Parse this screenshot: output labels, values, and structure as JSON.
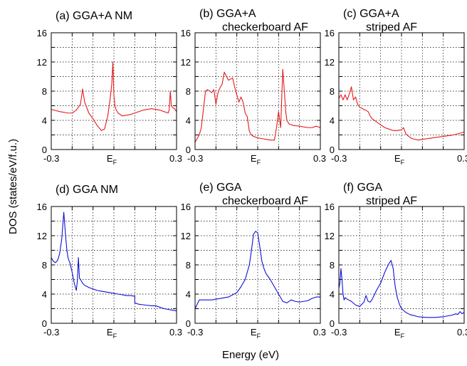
{
  "figure": {
    "ylabel": "DOS (states/eV/f.u.)",
    "xlabel": "Energy (eV)",
    "ef_main": "E",
    "ef_sub": "F"
  },
  "chart_data": [
    {
      "type": "line",
      "label": [
        "(a) GGA+A NM"
      ],
      "color": "#e8191c",
      "xlim": [
        -0.3,
        0.3
      ],
      "ylim": [
        0,
        16
      ],
      "xtick_labels": [
        "-0.3",
        "0.3"
      ],
      "ytick_labels": [
        "0",
        "4",
        "8",
        "12",
        "16"
      ],
      "x": [
        -0.3,
        -0.26,
        -0.22,
        -0.2,
        -0.18,
        -0.16,
        -0.15,
        -0.14,
        -0.12,
        -0.1,
        -0.08,
        -0.06,
        -0.045,
        -0.03,
        -0.02,
        -0.01,
        -0.005,
        0,
        0.005,
        0.01,
        0.02,
        0.04,
        0.06,
        0.08,
        0.1,
        0.14,
        0.18,
        0.22,
        0.24,
        0.26,
        0.265,
        0.27,
        0.275,
        0.28,
        0.29,
        0.3
      ],
      "y": [
        5.5,
        5.2,
        5.0,
        5.0,
        5.4,
        6.2,
        8.3,
        6.5,
        5.0,
        4.2,
        3.3,
        2.6,
        2.8,
        4.5,
        6.5,
        9.0,
        12.0,
        7.5,
        6.0,
        5.5,
        5.0,
        4.6,
        4.7,
        4.8,
        5.0,
        5.4,
        5.6,
        5.4,
        5.2,
        5.0,
        5.5,
        8.0,
        6.0,
        5.8,
        5.6,
        5.2
      ]
    },
    {
      "type": "line",
      "label": [
        "(b) GGA+A",
        "checkerboard AF"
      ],
      "color": "#e8191c",
      "xlim": [
        -0.3,
        0.3
      ],
      "ylim": [
        0,
        16
      ],
      "xtick_labels": [
        "-0.3",
        "0.3"
      ],
      "ytick_labels": [
        "0",
        "4",
        "8",
        "12",
        "16"
      ],
      "x": [
        -0.3,
        -0.28,
        -0.27,
        -0.26,
        -0.25,
        -0.24,
        -0.22,
        -0.21,
        -0.2,
        -0.19,
        -0.18,
        -0.17,
        -0.16,
        -0.14,
        -0.12,
        -0.11,
        -0.1,
        -0.09,
        -0.08,
        -0.07,
        -0.06,
        -0.05,
        -0.04,
        -0.03,
        -0.02,
        -0.01,
        0,
        0.02,
        0.04,
        0.06,
        0.08,
        0.09,
        0.1,
        0.11,
        0.12,
        0.13,
        0.135,
        0.14,
        0.15,
        0.16,
        0.17,
        0.2,
        0.22,
        0.24,
        0.26,
        0.28,
        0.3
      ],
      "y": [
        1.0,
        2.0,
        3.0,
        5.5,
        8.0,
        8.2,
        7.8,
        8.2,
        6.2,
        7.8,
        8.5,
        9.0,
        10.6,
        9.5,
        9.8,
        8.5,
        7.5,
        6.5,
        7.2,
        6.5,
        5.0,
        4.5,
        2.5,
        2.0,
        1.8,
        1.7,
        1.6,
        1.5,
        1.4,
        1.3,
        1.3,
        3.0,
        5.2,
        3.0,
        11.0,
        7.0,
        5.0,
        4.0,
        3.5,
        3.4,
        3.3,
        3.2,
        3.1,
        3.0,
        3.0,
        3.2,
        3.0
      ]
    },
    {
      "type": "line",
      "label": [
        "(c) GGA+A",
        "striped AF"
      ],
      "color": "#e8191c",
      "xlim": [
        -0.3,
        0.3
      ],
      "ylim": [
        0,
        16
      ],
      "xtick_labels": [
        "-0.3",
        "0.3"
      ],
      "ytick_labels": [
        "0",
        "4",
        "8",
        "12",
        "16"
      ],
      "x": [
        -0.3,
        -0.29,
        -0.28,
        -0.27,
        -0.26,
        -0.25,
        -0.24,
        -0.23,
        -0.22,
        -0.21,
        -0.2,
        -0.18,
        -0.16,
        -0.15,
        -0.14,
        -0.12,
        -0.1,
        -0.08,
        -0.06,
        -0.04,
        -0.02,
        0,
        0.01,
        0.02,
        0.03,
        0.05,
        0.08,
        0.1,
        0.15,
        0.2,
        0.25,
        0.3
      ],
      "y": [
        7.0,
        7.5,
        6.8,
        7.5,
        6.8,
        7.6,
        8.6,
        6.8,
        7.2,
        6.2,
        5.8,
        5.5,
        5.2,
        4.6,
        4.2,
        3.8,
        3.4,
        3.0,
        2.8,
        2.6,
        2.6,
        2.7,
        3.0,
        2.2,
        1.9,
        1.5,
        1.3,
        1.4,
        1.6,
        1.8,
        2.0,
        2.4
      ]
    },
    {
      "type": "line",
      "label": [
        "(d) GGA NM"
      ],
      "color": "#1010d6",
      "xlim": [
        -0.3,
        0.3
      ],
      "ylim": [
        0,
        16
      ],
      "xtick_labels": [
        "-0.3",
        "0.3"
      ],
      "ytick_labels": [
        "0",
        "4",
        "8",
        "12",
        "16"
      ],
      "x": [
        -0.3,
        -0.29,
        -0.28,
        -0.27,
        -0.26,
        -0.25,
        -0.24,
        -0.23,
        -0.225,
        -0.22,
        -0.21,
        -0.2,
        -0.19,
        -0.18,
        -0.175,
        -0.17,
        -0.165,
        -0.16,
        -0.15,
        -0.14,
        -0.12,
        -0.1,
        -0.08,
        -0.06,
        -0.04,
        -0.02,
        0,
        0.02,
        0.04,
        0.06,
        0.08,
        0.1,
        0.1,
        0.12,
        0.15,
        0.18,
        0.2,
        0.22,
        0.24,
        0.26,
        0.28,
        0.3
      ],
      "y": [
        9.0,
        8.5,
        8.3,
        8.6,
        9.5,
        11.5,
        15.2,
        11.5,
        10.0,
        9.0,
        8.2,
        7.0,
        5.5,
        4.5,
        5.8,
        9.0,
        6.2,
        6.0,
        5.5,
        5.2,
        4.9,
        4.7,
        4.5,
        4.4,
        4.3,
        4.2,
        4.1,
        4.0,
        3.9,
        3.8,
        3.8,
        3.7,
        2.8,
        2.6,
        2.5,
        2.4,
        2.4,
        2.2,
        2.0,
        1.9,
        1.8,
        1.7
      ]
    },
    {
      "type": "line",
      "label": [
        "(e) GGA",
        "checkerboard AF"
      ],
      "color": "#1010d6",
      "xlim": [
        -0.3,
        0.3
      ],
      "ylim": [
        0,
        16
      ],
      "xtick_labels": [
        "-0.3",
        "0.3"
      ],
      "ytick_labels": [
        "0",
        "4",
        "8",
        "12",
        "16"
      ],
      "x": [
        -0.3,
        -0.29,
        -0.28,
        -0.26,
        -0.22,
        -0.18,
        -0.14,
        -0.1,
        -0.08,
        -0.06,
        -0.04,
        -0.03,
        -0.02,
        -0.01,
        0,
        0.01,
        0.02,
        0.03,
        0.04,
        0.06,
        0.08,
        0.1,
        0.12,
        0.14,
        0.16,
        0.18,
        0.2,
        0.22,
        0.24,
        0.26,
        0.28,
        0.3
      ],
      "y": [
        2.0,
        2.6,
        3.2,
        3.2,
        3.2,
        3.4,
        3.6,
        4.2,
        5.0,
        6.0,
        8.0,
        10.0,
        12.2,
        12.6,
        12.4,
        10.5,
        8.5,
        7.5,
        6.8,
        6.0,
        5.0,
        4.0,
        3.0,
        2.8,
        3.2,
        3.0,
        2.9,
        3.0,
        3.1,
        3.4,
        3.6,
        3.6
      ]
    },
    {
      "type": "line",
      "label": [
        "(f) GGA",
        "striped AF"
      ],
      "color": "#1010d6",
      "xlim": [
        -0.3,
        0.3
      ],
      "ylim": [
        0,
        16
      ],
      "xtick_labels": [
        "-0.3",
        "0.3"
      ],
      "ytick_labels": [
        "0",
        "4",
        "8",
        "12",
        "16"
      ],
      "x": [
        -0.3,
        -0.295,
        -0.29,
        -0.285,
        -0.28,
        -0.275,
        -0.27,
        -0.26,
        -0.24,
        -0.22,
        -0.2,
        -0.18,
        -0.17,
        -0.16,
        -0.15,
        -0.14,
        -0.12,
        -0.1,
        -0.08,
        -0.06,
        -0.05,
        -0.04,
        -0.03,
        -0.02,
        -0.01,
        0,
        0.02,
        0.04,
        0.08,
        0.12,
        0.16,
        0.2,
        0.24,
        0.26,
        0.27,
        0.28,
        0.29,
        0.3
      ],
      "y": [
        4.8,
        5.5,
        7.5,
        6.0,
        4.0,
        3.2,
        3.5,
        3.3,
        3.0,
        2.5,
        2.3,
        2.9,
        3.8,
        3.0,
        2.9,
        3.3,
        4.5,
        5.5,
        7.0,
        8.2,
        8.6,
        7.5,
        5.0,
        3.5,
        2.6,
        2.0,
        1.5,
        1.2,
        0.9,
        0.8,
        0.8,
        0.9,
        1.1,
        1.3,
        1.2,
        1.6,
        1.3,
        1.5
      ]
    }
  ]
}
